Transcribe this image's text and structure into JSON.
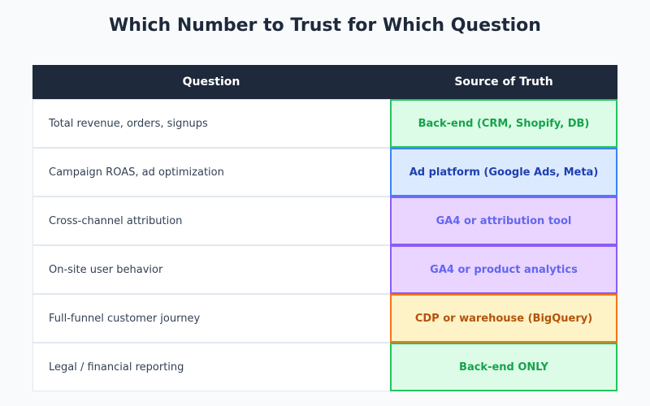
{
  "title": "Which Number to Trust for Which Question",
  "table": {
    "headers": {
      "question": "Question",
      "source": "Source of Truth"
    },
    "rows": [
      {
        "question": "Total revenue, orders, signups",
        "source": "Back-end (CRM, Shopify, DB)",
        "colors": {
          "bg": "#dcfce7",
          "border": "#22c55e",
          "text": "#16a34a"
        }
      },
      {
        "question": "Campaign ROAS, ad optimization",
        "source": "Ad platform (Google Ads, Meta)",
        "colors": {
          "bg": "#dbeafe",
          "border": "#3b82f6",
          "text": "#1e40af"
        }
      },
      {
        "question": "Cross-channel attribution",
        "source": "GA4 or attribution tool",
        "colors": {
          "bg": "#e9d5ff",
          "border": "#8b5cf6",
          "text": "#6366f1"
        }
      },
      {
        "question": "On-site user behavior",
        "source": "GA4 or product analytics",
        "colors": {
          "bg": "#e9d5ff",
          "border": "#8b5cf6",
          "text": "#6366f1"
        }
      },
      {
        "question": "Full-funnel customer journey",
        "source": "CDP or warehouse (BigQuery)",
        "colors": {
          "bg": "#fef3c7",
          "border": "#f97316",
          "text": "#b45309"
        }
      },
      {
        "question": "Legal / financial reporting",
        "source": "Back-end ONLY",
        "colors": {
          "bg": "#dcfce7",
          "border": "#22c55e",
          "text": "#16a34a"
        }
      }
    ]
  }
}
